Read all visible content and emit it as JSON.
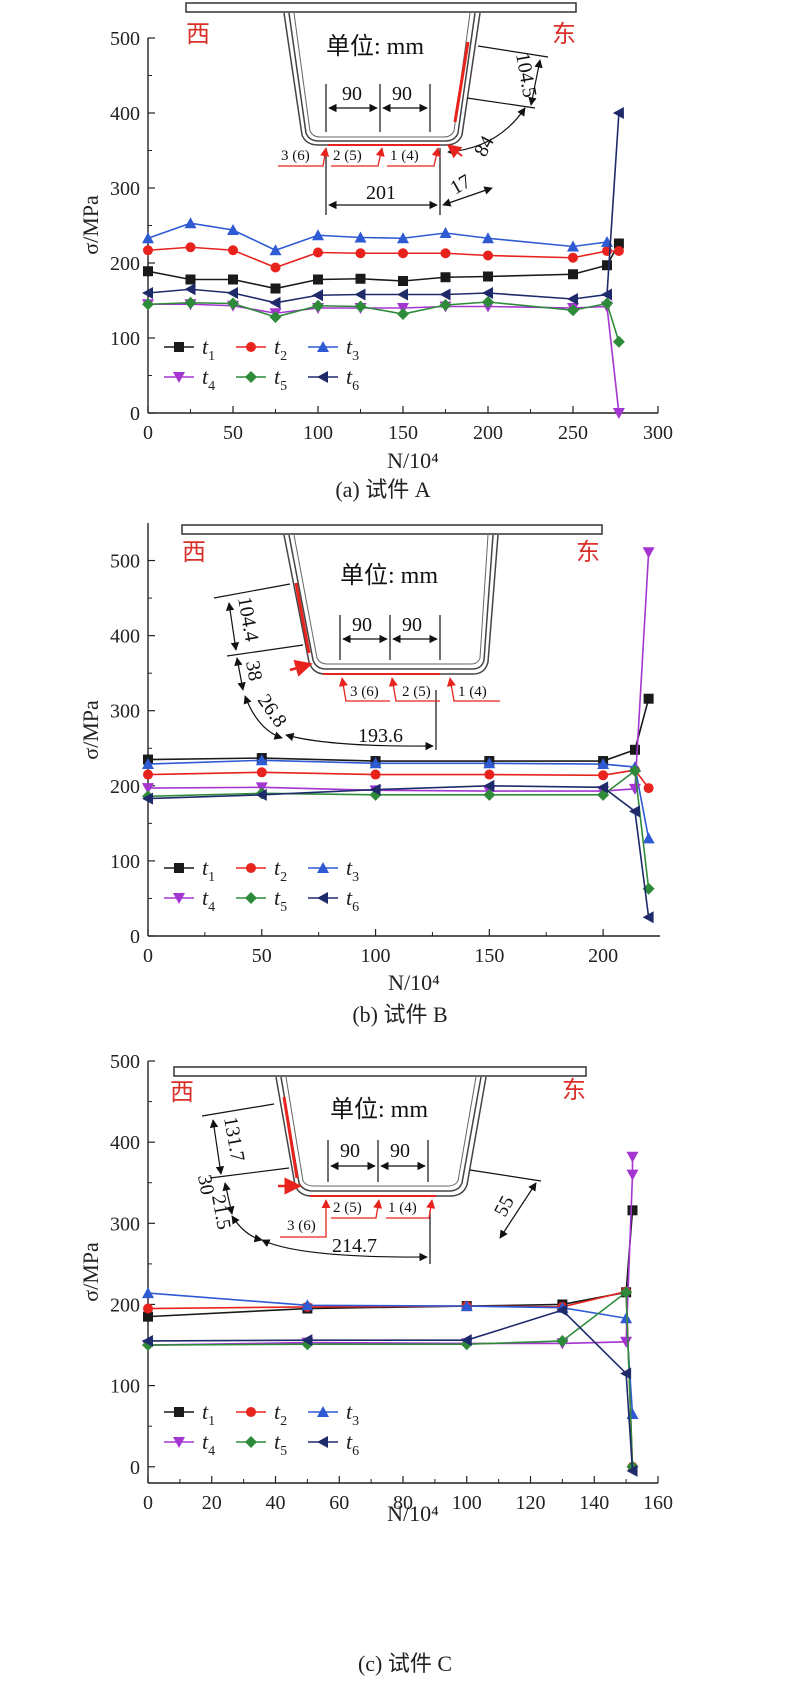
{
  "colors": {
    "t1": "#1a1a1a",
    "t2": "#e8231d",
    "t3": "#2e5bd3",
    "t4": "#a535d0",
    "t5": "#2e8b3a",
    "t6": "#1f2a6b",
    "annotation_red": "#d9302a"
  },
  "markers": {
    "t1": "square",
    "t2": "circle",
    "t3": "triangle-up",
    "t4": "triangle-down",
    "t5": "diamond",
    "t6": "triangle-left"
  },
  "legend_labels": [
    {
      "key": "t1",
      "main": "t",
      "sub": "1"
    },
    {
      "key": "t2",
      "main": "t",
      "sub": "2"
    },
    {
      "key": "t3",
      "main": "t",
      "sub": "3"
    },
    {
      "key": "t4",
      "main": "t",
      "sub": "4"
    },
    {
      "key": "t5",
      "main": "t",
      "sub": "5"
    },
    {
      "key": "t6",
      "main": "t",
      "sub": "6"
    }
  ],
  "chart_data": [
    {
      "type": "line",
      "caption": "(a) 试件 A",
      "xlabel": "N/10⁴",
      "ylabel": "σ/MPa",
      "xlim": [
        0,
        300
      ],
      "ylim": [
        0,
        500
      ],
      "xticks": [
        0,
        50,
        100,
        150,
        200,
        250,
        300
      ],
      "yticks": [
        0,
        100,
        200,
        300,
        400,
        500
      ],
      "series": [
        {
          "name": "t1",
          "x": [
            0,
            25,
            50,
            75,
            100,
            125,
            150,
            175,
            200,
            250,
            270,
            277
          ],
          "y": [
            189,
            178,
            178,
            166,
            178,
            179,
            176,
            181,
            182,
            185,
            197,
            226
          ]
        },
        {
          "name": "t2",
          "x": [
            0,
            25,
            50,
            75,
            100,
            125,
            150,
            175,
            200,
            250,
            270,
            277
          ],
          "y": [
            217,
            221,
            217,
            194,
            214,
            213,
            213,
            213,
            210,
            207,
            216,
            216
          ]
        },
        {
          "name": "t3",
          "x": [
            0,
            25,
            50,
            75,
            100,
            125,
            150,
            175,
            200,
            250,
            270
          ],
          "y": [
            233,
            253,
            244,
            217,
            237,
            234,
            233,
            240,
            233,
            222,
            228
          ]
        },
        {
          "name": "t4",
          "x": [
            0,
            25,
            50,
            75,
            100,
            125,
            150,
            175,
            200,
            250,
            270,
            277
          ],
          "y": [
            145,
            145,
            143,
            133,
            140,
            140,
            140,
            142,
            142,
            140,
            142,
            0
          ]
        },
        {
          "name": "t5",
          "x": [
            0,
            25,
            50,
            75,
            100,
            125,
            150,
            175,
            200,
            250,
            270,
            277
          ],
          "y": [
            145,
            147,
            146,
            128,
            143,
            142,
            132,
            144,
            148,
            137,
            146,
            95
          ]
        },
        {
          "name": "t6",
          "x": [
            0,
            25,
            50,
            75,
            100,
            125,
            150,
            175,
            200,
            250,
            270,
            277
          ],
          "y": [
            160,
            165,
            160,
            147,
            157,
            158,
            158,
            158,
            160,
            152,
            158,
            400
          ]
        }
      ],
      "inset": {
        "unit_label": "单位: mm",
        "west": "西",
        "east": "东",
        "dims": [
          "90",
          "90",
          "104.5",
          "84",
          "201",
          "17"
        ],
        "gauge_labels": [
          "3 (6)",
          "2 (5)",
          "1 (4)"
        ]
      }
    },
    {
      "type": "line",
      "caption": "(b) 试件 B",
      "xlabel": "N/10⁴",
      "ylabel": "σ/MPa",
      "xlim": [
        0,
        225
      ],
      "ylim": [
        0,
        550
      ],
      "xticks": [
        0,
        50,
        100,
        150,
        200
      ],
      "yticks": [
        0,
        100,
        200,
        300,
        400,
        500
      ],
      "series": [
        {
          "name": "t1",
          "x": [
            0,
            50,
            100,
            150,
            200,
            214,
            220
          ],
          "y": [
            235,
            237,
            233,
            233,
            233,
            248,
            316
          ]
        },
        {
          "name": "t2",
          "x": [
            0,
            50,
            100,
            150,
            200,
            214,
            220
          ],
          "y": [
            215,
            218,
            215,
            215,
            214,
            221,
            197
          ]
        },
        {
          "name": "t3",
          "x": [
            0,
            50,
            100,
            150,
            200,
            214,
            220
          ],
          "y": [
            229,
            234,
            230,
            230,
            229,
            225,
            130
          ]
        },
        {
          "name": "t4",
          "x": [
            0,
            50,
            100,
            150,
            200,
            214,
            220
          ],
          "y": [
            197,
            198,
            194,
            193,
            193,
            196,
            511
          ]
        },
        {
          "name": "t5",
          "x": [
            0,
            50,
            100,
            150,
            200,
            214,
            220
          ],
          "y": [
            186,
            190,
            188,
            188,
            188,
            220,
            63
          ]
        },
        {
          "name": "t6",
          "x": [
            0,
            50,
            100,
            150,
            200,
            214,
            220
          ],
          "y": [
            183,
            188,
            195,
            200,
            198,
            166,
            25
          ]
        }
      ],
      "inset": {
        "unit_label": "单位: mm",
        "west": "西",
        "east": "东",
        "dims": [
          "90",
          "90",
          "104.4",
          "38",
          "26.8",
          "193.6"
        ],
        "gauge_labels": [
          "3 (6)",
          "2 (5)",
          "1 (4)"
        ]
      }
    },
    {
      "type": "line",
      "caption": "(c) 试件 C",
      "xlabel": "N/10⁴",
      "ylabel": "σ/MPa",
      "xlim": [
        0,
        160
      ],
      "ylim": [
        -20,
        500
      ],
      "xticks": [
        0,
        20,
        40,
        60,
        80,
        100,
        120,
        140,
        160
      ],
      "yticks": [
        0,
        100,
        200,
        300,
        400,
        500
      ],
      "series": [
        {
          "name": "t1",
          "x": [
            0,
            50,
            100,
            130,
            150,
            152
          ],
          "y": [
            185,
            195,
            198,
            200,
            215,
            316
          ]
        },
        {
          "name": "t2",
          "x": [
            0,
            50,
            100,
            130,
            150,
            152
          ],
          "y": [
            195,
            197,
            198,
            197,
            216,
            0
          ]
        },
        {
          "name": "t3",
          "x": [
            0,
            50,
            100,
            130,
            150,
            152
          ],
          "y": [
            214,
            199,
            198,
            196,
            183,
            65
          ]
        },
        {
          "name": "t4",
          "x": [
            0,
            50,
            100,
            130,
            150,
            152,
            152
          ],
          "y": [
            150,
            153,
            152,
            152,
            154,
            360,
            382
          ]
        },
        {
          "name": "t5",
          "x": [
            0,
            50,
            100,
            130,
            150,
            152
          ],
          "y": [
            150,
            151,
            151,
            155,
            215,
            0
          ]
        },
        {
          "name": "t6",
          "x": [
            0,
            50,
            100,
            130,
            150,
            152
          ],
          "y": [
            155,
            156,
            156,
            193,
            115,
            -5
          ]
        }
      ],
      "inset": {
        "unit_label": "单位: mm",
        "west": "西",
        "east": "东",
        "dims": [
          "90",
          "90",
          "131.7",
          "30",
          "21.5",
          "214.7",
          "55"
        ],
        "gauge_labels": [
          "3 (6)",
          "2 (5)",
          "1 (4)"
        ]
      }
    }
  ]
}
